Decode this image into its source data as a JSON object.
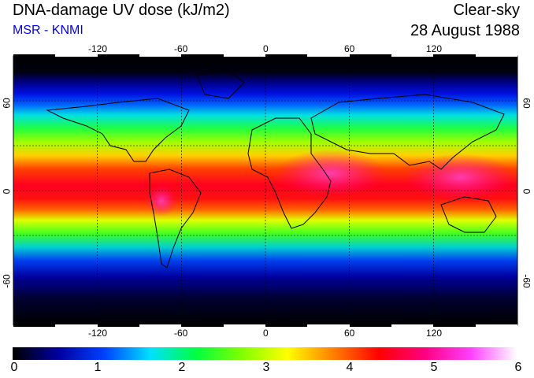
{
  "header": {
    "title": "DNA-damage UV dose (kJ/m2)",
    "subtitle": "MSR - KNMI",
    "condition": "Clear-sky",
    "date": "28 August 1988"
  },
  "map": {
    "lon_ticks": [
      "-120",
      "-60",
      "0",
      "60",
      "120"
    ],
    "lat_ticks_left": [
      "60",
      "0",
      "-60"
    ],
    "lat_ticks_right": [
      "60",
      "0",
      "-60"
    ],
    "lon_range": [
      -180,
      180
    ],
    "lat_range": [
      -90,
      90
    ],
    "grid_lines": true
  },
  "colorbar": {
    "labels": [
      "0",
      "1",
      "2",
      "3",
      "4",
      "5",
      "6"
    ],
    "colors": [
      "#000000",
      "#0000a0",
      "#0040ff",
      "#00e0ff",
      "#00ff40",
      "#80ff00",
      "#ffff00",
      "#ff8000",
      "#ff0000",
      "#ff0080",
      "#ff40ff",
      "#ffffff"
    ]
  }
}
